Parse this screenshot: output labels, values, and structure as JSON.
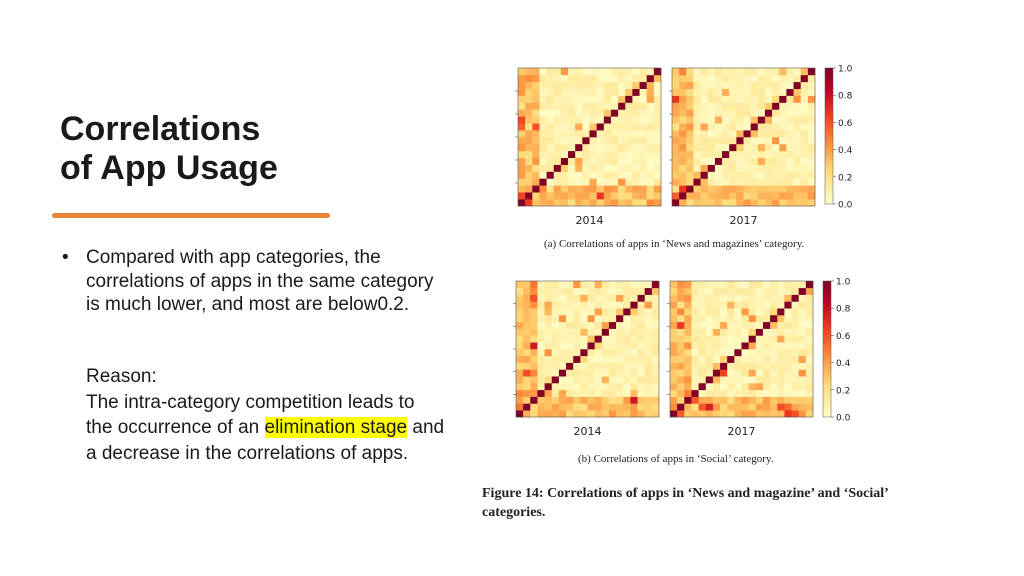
{
  "slide": {
    "title_line1": "Correlations",
    "title_line2": "of App Usage",
    "bullet_marker": "•",
    "bullet_text": "Compared with app categories, the correlations of apps in the same category is much lower, and most are below0.2.",
    "reason_label": "Reason:",
    "reason_part1": "The intra-category competition leads to the occurrence of an ",
    "reason_highlight": "elimination stage",
    "reason_part2": " and a decrease in the correlations of apps.",
    "highlight_color": "#ffff00",
    "accent_color": "#e8833a"
  },
  "figure": {
    "caption_a": "(a) Correlations of apps in ‘News and magazines’ category.",
    "caption_b": "(b) Correlations of apps in ‘Social’ category.",
    "figure_caption": "Figure 14: Correlations of apps in ‘News and magazine’ and ‘Social’ categories.",
    "colorbar_ticks": [
      "1.0",
      "0.8",
      "0.6",
      "0.4",
      "0.2",
      "0.0"
    ],
    "panels": [
      {
        "label": "2014",
        "group": "a",
        "n": 20
      },
      {
        "label": "2017",
        "group": "a",
        "n": 20
      },
      {
        "label": "2014",
        "group": "b",
        "n": 20
      },
      {
        "label": "2017",
        "group": "b",
        "n": 20
      }
    ]
  }
}
